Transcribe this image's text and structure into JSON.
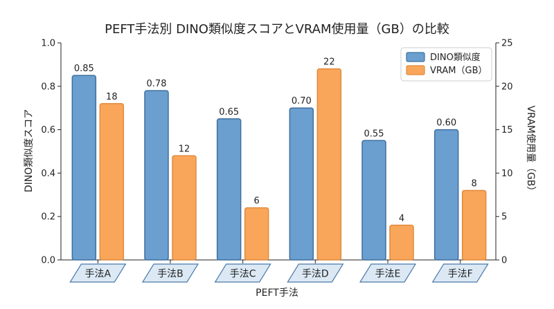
{
  "chart_data": {
    "type": "bar",
    "title": "PEFT手法別 DINO類似度スコアとVRAM使用量（GB）の比較",
    "xlabel": "PEFT手法",
    "ylabel": "DINO類似度スコア",
    "ylabel_right": "VRAM使用量（GB）",
    "categories": [
      "手法A",
      "手法B",
      "手法C",
      "手法D",
      "手法E",
      "手法F"
    ],
    "ylim": [
      0,
      1.0
    ],
    "ylim_right": [
      0,
      25
    ],
    "yticks": [
      "0.0",
      "0.2",
      "0.4",
      "0.6",
      "0.8",
      "1.0"
    ],
    "yticks_right": [
      "0",
      "5",
      "10",
      "15",
      "20",
      "25"
    ],
    "legend_position": "top-right",
    "grid": false,
    "series": [
      {
        "name": "DINO類似度",
        "axis": "left",
        "color": "#6a9fd0",
        "edge": "#3f6f9e",
        "values": [
          0.85,
          0.78,
          0.65,
          0.7,
          0.55,
          0.6
        ],
        "labels": [
          "0.85",
          "0.78",
          "0.65",
          "0.70",
          "0.55",
          "0.60"
        ]
      },
      {
        "name": "VRAM（GB）",
        "axis": "right",
        "color": "#f9a65a",
        "edge": "#e08a3c",
        "values": [
          18,
          12,
          6,
          22,
          4,
          8
        ],
        "labels": [
          "18",
          "12",
          "6",
          "22",
          "4",
          "8"
        ]
      }
    ],
    "category_box_fill": "#dce9f5",
    "category_box_edge": "#4a78a8"
  }
}
